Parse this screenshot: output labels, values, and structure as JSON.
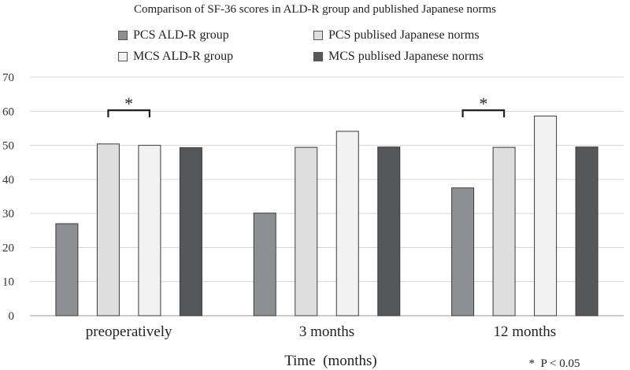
{
  "chart_data": {
    "type": "bar",
    "title": "Comparison of SF-36 scores in ALD-R group and published Japanese norms",
    "xlabel": "Time  (months)",
    "ylabel": "",
    "ylim": [
      0,
      70
    ],
    "yticks": [
      0,
      10,
      20,
      30,
      40,
      50,
      60,
      70
    ],
    "grid": true,
    "legend_position": "top",
    "categories": [
      "preoperatively",
      "3 months",
      "12 months"
    ],
    "series": [
      {
        "name": "PCS ALD-R group",
        "color": "#8e8f93",
        "values": [
          27.0,
          30.1,
          37.5
        ]
      },
      {
        "name": "PCS publised Japanese norms",
        "color": "#dedede",
        "values": [
          50.4,
          49.4,
          49.4
        ]
      },
      {
        "name": "MCS ALD-R group",
        "color": "#f2f2f2",
        "values": [
          50.0,
          54.1,
          58.6
        ]
      },
      {
        "name": "MCS publised Japanese norms",
        "color": "#555759",
        "values": [
          49.3,
          49.5,
          49.5
        ]
      }
    ],
    "significance_markers": [
      {
        "category_index": 0,
        "between_series": [
          1,
          2
        ],
        "symbol": "*"
      },
      {
        "category_index": 2,
        "between_series": [
          0,
          1
        ],
        "symbol": "*"
      }
    ],
    "footnote": "*  P < 0.05"
  }
}
